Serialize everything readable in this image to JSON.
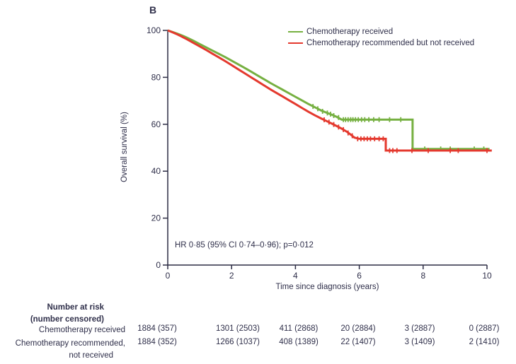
{
  "panel_label": "B",
  "colors": {
    "green": "#76b041",
    "red": "#e4392e",
    "text": "#2f2f4a",
    "axis": "#2c2c44"
  },
  "annotation": "HR 0·85 (95% CI 0·74–0·96); p=0·012",
  "chart_data": {
    "type": "line",
    "subtype": "kaplan_meier_step",
    "title": "B",
    "xlabel": "Time since diagnosis (years)",
    "ylabel": "Overall survival (%)",
    "xlim": [
      0,
      10
    ],
    "ylim": [
      0,
      100
    ],
    "x_ticks": [
      "0",
      "2",
      "4",
      "6",
      "8",
      "10"
    ],
    "y_ticks": [
      "0",
      "20",
      "40",
      "60",
      "80",
      "100"
    ],
    "grid": false,
    "legend_position": "top-right-inside",
    "annotation": "HR 0·85 (95% CI 0·74–0·96); p=0·012",
    "series": [
      {
        "name": "Chemotherapy received",
        "color": "#76b041",
        "points": [
          [
            0,
            100
          ],
          [
            0.15,
            99.3
          ],
          [
            0.3,
            98.6
          ],
          [
            0.45,
            97.8
          ],
          [
            0.6,
            96.9
          ],
          [
            0.8,
            95.6
          ],
          [
            1,
            94.2
          ],
          [
            1.2,
            92.8
          ],
          [
            1.4,
            91.4
          ],
          [
            1.6,
            90
          ],
          [
            1.8,
            88.6
          ],
          [
            2,
            87.1
          ],
          [
            2.2,
            85.6
          ],
          [
            2.4,
            84.1
          ],
          [
            2.6,
            82.5
          ],
          [
            2.8,
            80.9
          ],
          [
            3,
            79.3
          ],
          [
            3.2,
            77.7
          ],
          [
            3.4,
            76.2
          ],
          [
            3.6,
            74.7
          ],
          [
            3.8,
            73.2
          ],
          [
            4,
            71.7
          ],
          [
            4.2,
            70.2
          ],
          [
            4.4,
            68.7
          ],
          [
            4.6,
            67.3
          ],
          [
            4.8,
            65.9
          ],
          [
            5,
            64.8
          ],
          [
            5.15,
            64
          ],
          [
            5.3,
            63.1
          ],
          [
            5.45,
            62
          ],
          [
            7.67,
            62
          ],
          [
            7.67,
            49.5
          ],
          [
            10.08,
            49.5
          ]
        ],
        "censor_ticks": [
          [
            4.55,
            67.6
          ],
          [
            4.7,
            66.6
          ],
          [
            4.85,
            65.5
          ],
          [
            5.0,
            64.8
          ],
          [
            5.1,
            64.3
          ],
          [
            5.2,
            63.7
          ],
          [
            5.35,
            62.9
          ],
          [
            5.5,
            62
          ],
          [
            5.57,
            62
          ],
          [
            5.65,
            62
          ],
          [
            5.73,
            62
          ],
          [
            5.8,
            62
          ],
          [
            5.88,
            62
          ],
          [
            5.97,
            62
          ],
          [
            6.07,
            62
          ],
          [
            6.17,
            62
          ],
          [
            6.3,
            62
          ],
          [
            6.45,
            62
          ],
          [
            6.62,
            62
          ],
          [
            6.95,
            62
          ],
          [
            7.3,
            62
          ],
          [
            8.05,
            49.5
          ],
          [
            8.55,
            49.5
          ],
          [
            8.85,
            49.5
          ],
          [
            9.6,
            49.5
          ],
          [
            9.9,
            49.5
          ]
        ]
      },
      {
        "name": "Chemotherapy recommended but not received",
        "color": "#e4392e",
        "points": [
          [
            0,
            100
          ],
          [
            0.15,
            99.2
          ],
          [
            0.3,
            98.3
          ],
          [
            0.45,
            97.3
          ],
          [
            0.6,
            96.2
          ],
          [
            0.8,
            94.7
          ],
          [
            1,
            93.2
          ],
          [
            1.2,
            91.7
          ],
          [
            1.4,
            90.1
          ],
          [
            1.6,
            88.5
          ],
          [
            1.8,
            86.9
          ],
          [
            2,
            85.2
          ],
          [
            2.2,
            83.5
          ],
          [
            2.4,
            81.8
          ],
          [
            2.6,
            80.1
          ],
          [
            2.8,
            78.4
          ],
          [
            3,
            76.7
          ],
          [
            3.2,
            75
          ],
          [
            3.4,
            73.4
          ],
          [
            3.6,
            71.8
          ],
          [
            3.8,
            70.2
          ],
          [
            4,
            68.6
          ],
          [
            4.2,
            67
          ],
          [
            4.4,
            65.4
          ],
          [
            4.6,
            63.9
          ],
          [
            4.8,
            62.5
          ],
          [
            5,
            61.2
          ],
          [
            5.15,
            60.2
          ],
          [
            5.3,
            59.2
          ],
          [
            5.45,
            58.1
          ],
          [
            5.6,
            56.9
          ],
          [
            5.75,
            55.4
          ],
          [
            5.85,
            54.3
          ],
          [
            6,
            53.8
          ],
          [
            6.83,
            53.8
          ],
          [
            6.83,
            48.8
          ],
          [
            10.15,
            48.8
          ]
        ],
        "censor_ticks": [
          [
            4.9,
            61.9
          ],
          [
            5.05,
            60.9
          ],
          [
            5.2,
            59.9
          ],
          [
            5.35,
            58.8
          ],
          [
            5.5,
            57.7
          ],
          [
            5.65,
            56.3
          ],
          [
            5.78,
            55.1
          ],
          [
            5.95,
            53.8
          ],
          [
            6.05,
            53.8
          ],
          [
            6.15,
            53.8
          ],
          [
            6.25,
            53.8
          ],
          [
            6.35,
            53.8
          ],
          [
            6.48,
            53.8
          ],
          [
            6.62,
            53.8
          ],
          [
            6.75,
            53.8
          ],
          [
            6.95,
            48.8
          ],
          [
            7.05,
            48.8
          ],
          [
            7.18,
            48.8
          ],
          [
            7.65,
            48.8
          ],
          [
            8.16,
            48.8
          ],
          [
            8.85,
            48.8
          ],
          [
            9.1,
            48.8
          ],
          [
            10.0,
            48.8
          ]
        ]
      }
    ]
  },
  "risk_table": {
    "header_line1": "Number at risk",
    "header_line2": "(number censored)",
    "rows": [
      {
        "label_line1": "Chemotherapy received",
        "label_line2": "",
        "values": [
          "1884 (357)",
          "1301 (2503)",
          "411 (2868)",
          "20 (2884)",
          "3 (2887)",
          "0 (2887)"
        ]
      },
      {
        "label_line1": "Chemotherapy recommended,",
        "label_line2": "not received",
        "values": [
          "1884 (352)",
          "1266 (1037)",
          "408 (1389)",
          "22 (1407)",
          "3 (1409)",
          "2 (1410)"
        ]
      }
    ]
  }
}
